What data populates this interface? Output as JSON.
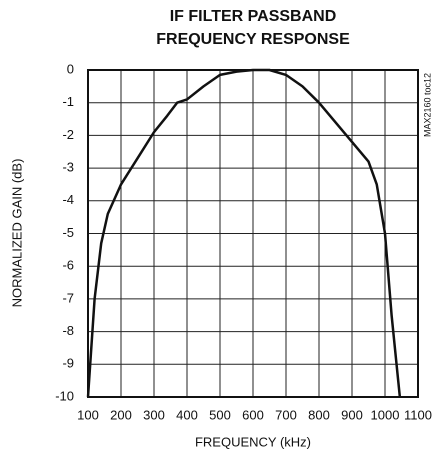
{
  "chart_data": {
    "type": "line",
    "title": [
      "IF FILTER PASSBAND",
      "FREQUENCY RESPONSE"
    ],
    "side_note": "MAX2160 toc12",
    "x_label": "FREQUENCY (kHz)",
    "y_label": "NORMALIZED GAIN (dB)",
    "x": [
      100,
      120,
      140,
      160,
      200,
      250,
      300,
      340,
      370,
      400,
      450,
      500,
      550,
      600,
      650,
      700,
      750,
      800,
      850,
      900,
      950,
      975,
      1000,
      1020,
      1045
    ],
    "values": [
      -10,
      -7,
      -5.3,
      -4.4,
      -3.5,
      -2.7,
      -1.9,
      -1.4,
      -1.0,
      -0.9,
      -0.5,
      -0.15,
      -0.05,
      0,
      0,
      -0.15,
      -0.5,
      -1.0,
      -1.6,
      -2.2,
      -2.8,
      -3.5,
      -5.0,
      -7.5,
      -10
    ],
    "color": "#111111",
    "xlim": [
      100,
      1100
    ],
    "xticks": [
      100,
      200,
      300,
      400,
      500,
      600,
      700,
      800,
      900,
      1000,
      1100
    ],
    "ylim": [
      -10,
      0
    ],
    "yticks": [
      0,
      -1,
      -2,
      -3,
      -4,
      -5,
      -6,
      -7,
      -8,
      -9,
      -10
    ],
    "grid": true
  }
}
